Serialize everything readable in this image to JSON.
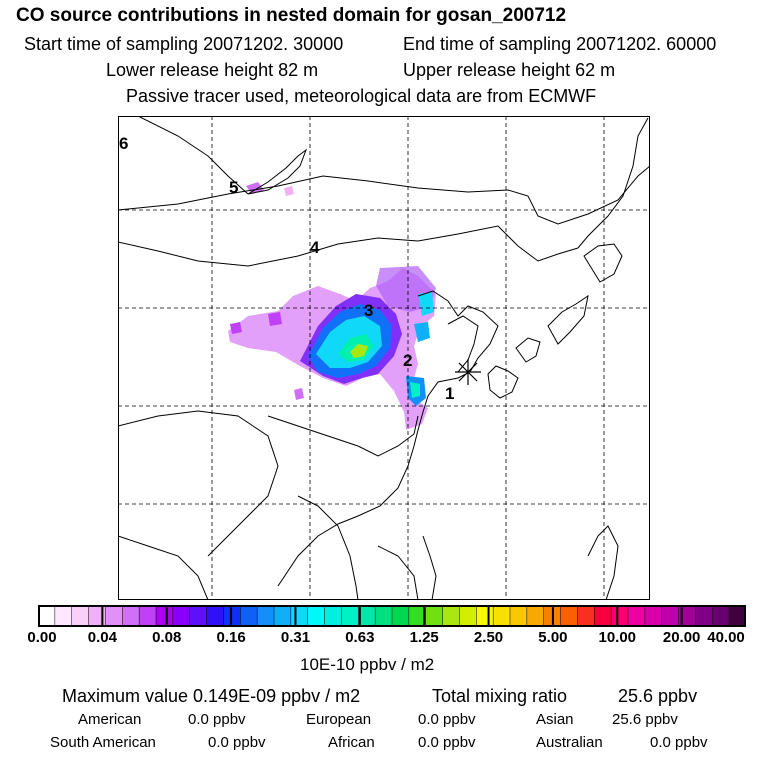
{
  "header": {
    "title": "CO  source contributions in nested domain for gosan_200712",
    "start_label": "Start time of sampling 20071202. 30000",
    "end_label": "End time of sampling 20071202. 60000",
    "lower_label": "Lower release height   82 m",
    "upper_label": "Upper release height   62 m",
    "info": "Passive tracer used, meteorological data are from ECMWF"
  },
  "map": {
    "region_labels": [
      "1",
      "2",
      "3",
      "4",
      "5",
      "6"
    ],
    "receptor": "gosan",
    "grid": "dashed"
  },
  "colorbar": {
    "ticks": [
      "0.00",
      "0.04",
      "0.08",
      "0.16",
      "0.31",
      "0.63",
      "1.25",
      "2.50",
      "5.00",
      "10.00",
      "20.00",
      "40.00"
    ],
    "units": "10E-10 ppbv / m2",
    "colors": [
      "#ffffff",
      "#ffe8ff",
      "#f8d0f8",
      "#f0b0f8",
      "#e090f8",
      "#d070f8",
      "#c040f8",
      "#a800f0",
      "#8800f8",
      "#6010f8",
      "#3010f8",
      "#1030f8",
      "#1060f8",
      "#1090f8",
      "#10b0f8",
      "#10d8f8",
      "#00f8f8",
      "#00f0e0",
      "#00f0c8",
      "#00e8a8",
      "#00e080",
      "#00d850",
      "#30e020",
      "#70e010",
      "#a8e810",
      "#d0f000",
      "#f8f800",
      "#f8e000",
      "#f8c800",
      "#f8a800",
      "#f88000",
      "#f86000",
      "#f83020",
      "#f80040",
      "#f80070",
      "#f000a0",
      "#d800a8",
      "#c000a8",
      "#a00098",
      "#800088",
      "#680070",
      "#400040"
    ]
  },
  "summary": {
    "max_label": "Maximum value  0.149E-09 ppbv / m2",
    "total_label": "Total mixing ratio",
    "total_value": "25.6 ppbv",
    "regions": [
      {
        "name": "American",
        "value": "0.0 ppbv"
      },
      {
        "name": "European",
        "value": "0.0 ppbv"
      },
      {
        "name": "Asian",
        "value": "25.6 ppbv"
      },
      {
        "name": "South American",
        "value": "0.0 ppbv"
      },
      {
        "name": "African",
        "value": "0.0 ppbv"
      },
      {
        "name": "Australian",
        "value": "0.0 ppbv"
      }
    ]
  }
}
